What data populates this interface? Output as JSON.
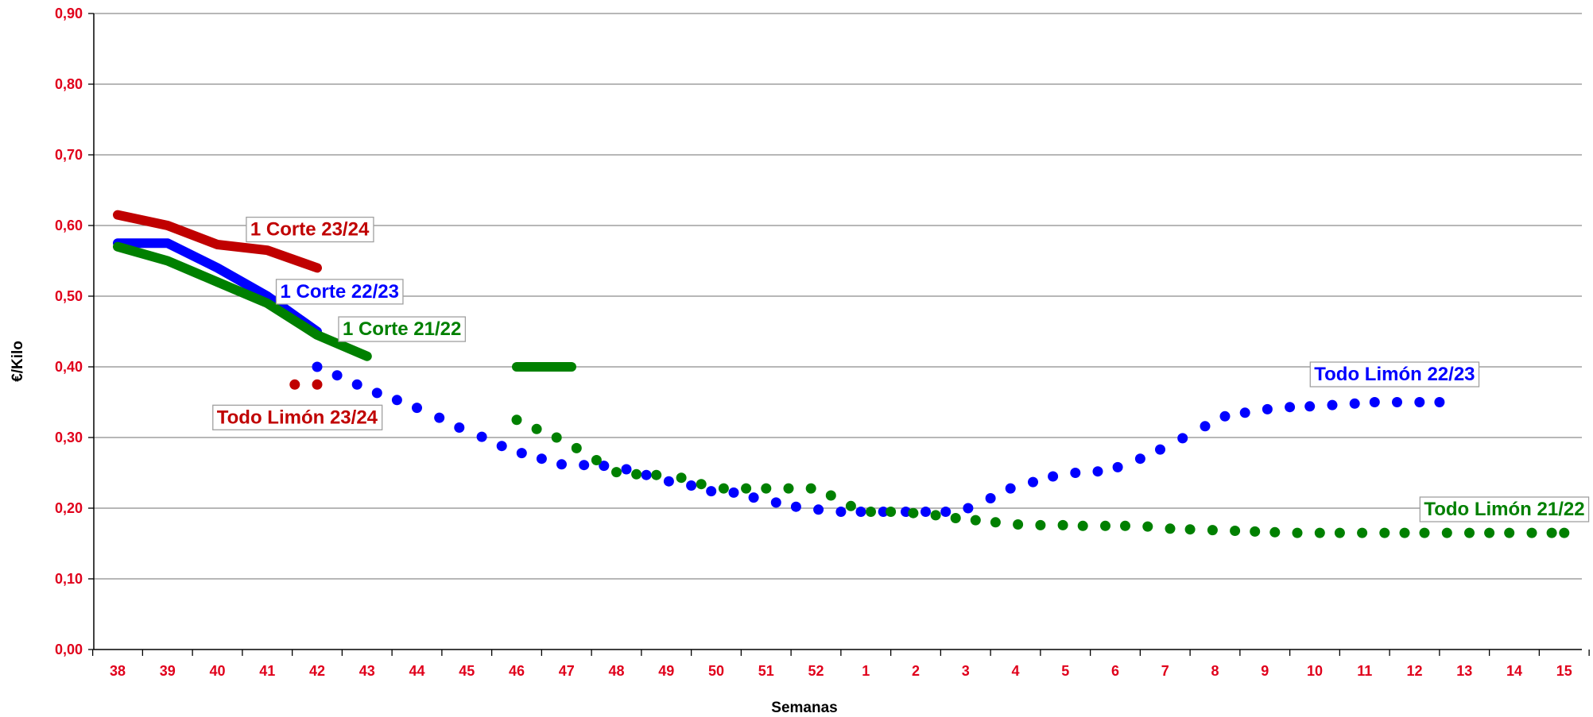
{
  "chart_data": {
    "type": "line",
    "title": "",
    "xlabel": "Semanas",
    "ylabel": "€/Kilo",
    "ylim": [
      0,
      0.9
    ],
    "yticks": [
      "0,00",
      "0,10",
      "0,20",
      "0,30",
      "0,40",
      "0,50",
      "0,60",
      "0,70",
      "0,80",
      "0,90"
    ],
    "categories": [
      "38",
      "39",
      "40",
      "41",
      "42",
      "43",
      "44",
      "45",
      "46",
      "47",
      "48",
      "49",
      "50",
      "51",
      "52",
      "1",
      "2",
      "3",
      "4",
      "5",
      "6",
      "7",
      "8",
      "9",
      "10",
      "11",
      "12",
      "13",
      "14",
      "15"
    ],
    "grid": true,
    "legend": "inline labels",
    "series": [
      {
        "name": "1 Corte 23/24",
        "style": "solid",
        "color": "#c00000",
        "points": [
          [
            0,
            0.615
          ],
          [
            1,
            0.6
          ],
          [
            2,
            0.573
          ],
          [
            3,
            0.565
          ],
          [
            4,
            0.54
          ]
        ]
      },
      {
        "name": "1 Corte 22/23",
        "style": "solid",
        "color": "#0000ff",
        "points": [
          [
            0,
            0.575
          ],
          [
            1,
            0.575
          ],
          [
            2,
            0.54
          ],
          [
            3,
            0.5
          ],
          [
            4,
            0.45
          ]
        ]
      },
      {
        "name": "1 Corte 21/22",
        "style": "solid",
        "color": "#008000",
        "points": [
          [
            0,
            0.57
          ],
          [
            1,
            0.55
          ],
          [
            2,
            0.52
          ],
          [
            3,
            0.49
          ],
          [
            4,
            0.445
          ],
          [
            5,
            0.415
          ]
        ]
      },
      {
        "name": "",
        "style": "solid",
        "color": "#008000",
        "points": [
          [
            8.0,
            0.4
          ],
          [
            9.1,
            0.4
          ]
        ]
      },
      {
        "name": "Todo Limón 23/24",
        "style": "dotted",
        "color": "#c00000",
        "points": [
          [
            3.55,
            0.375
          ],
          [
            4.0,
            0.375
          ]
        ]
      },
      {
        "name": "Todo Limón 22/23",
        "style": "dotted",
        "color": "#0000ff",
        "points": [
          [
            4.0,
            0.4
          ],
          [
            4.4,
            0.388
          ],
          [
            4.8,
            0.375
          ],
          [
            5.2,
            0.363
          ],
          [
            5.6,
            0.353
          ],
          [
            6.0,
            0.342
          ],
          [
            6.45,
            0.328
          ],
          [
            6.85,
            0.314
          ],
          [
            7.3,
            0.301
          ],
          [
            7.7,
            0.288
          ],
          [
            8.1,
            0.278
          ],
          [
            8.5,
            0.27
          ],
          [
            8.9,
            0.262
          ],
          [
            9.35,
            0.261
          ],
          [
            9.75,
            0.26
          ],
          [
            10.2,
            0.255
          ],
          [
            10.6,
            0.247
          ],
          [
            11.05,
            0.238
          ],
          [
            11.5,
            0.232
          ],
          [
            11.9,
            0.224
          ],
          [
            12.35,
            0.222
          ],
          [
            12.75,
            0.215
          ],
          [
            13.2,
            0.208
          ],
          [
            13.6,
            0.202
          ],
          [
            14.05,
            0.198
          ],
          [
            14.5,
            0.195
          ],
          [
            14.9,
            0.195
          ],
          [
            15.35,
            0.195
          ],
          [
            15.8,
            0.195
          ],
          [
            16.2,
            0.195
          ],
          [
            16.6,
            0.195
          ],
          [
            17.05,
            0.2
          ],
          [
            17.5,
            0.214
          ],
          [
            17.9,
            0.228
          ],
          [
            18.35,
            0.237
          ],
          [
            18.75,
            0.245
          ],
          [
            19.2,
            0.25
          ],
          [
            19.65,
            0.252
          ],
          [
            20.05,
            0.258
          ],
          [
            20.5,
            0.27
          ],
          [
            20.9,
            0.283
          ],
          [
            21.35,
            0.299
          ],
          [
            21.8,
            0.316
          ],
          [
            22.2,
            0.33
          ],
          [
            22.6,
            0.335
          ],
          [
            23.05,
            0.34
          ],
          [
            23.5,
            0.343
          ],
          [
            23.9,
            0.344
          ],
          [
            24.35,
            0.346
          ],
          [
            24.8,
            0.348
          ],
          [
            25.2,
            0.35
          ],
          [
            25.65,
            0.35
          ],
          [
            26.1,
            0.35
          ],
          [
            26.5,
            0.35
          ]
        ]
      },
      {
        "name": "Todo Limón 21/22",
        "style": "dotted",
        "color": "#008000",
        "points": [
          [
            8.0,
            0.325
          ],
          [
            8.4,
            0.312
          ],
          [
            8.8,
            0.3
          ],
          [
            9.2,
            0.285
          ],
          [
            9.6,
            0.268
          ],
          [
            10.0,
            0.251
          ],
          [
            10.4,
            0.248
          ],
          [
            10.8,
            0.247
          ],
          [
            11.3,
            0.243
          ],
          [
            11.7,
            0.234
          ],
          [
            12.15,
            0.228
          ],
          [
            12.6,
            0.228
          ],
          [
            13.0,
            0.228
          ],
          [
            13.45,
            0.228
          ],
          [
            13.9,
            0.228
          ],
          [
            14.3,
            0.218
          ],
          [
            14.7,
            0.203
          ],
          [
            15.1,
            0.195
          ],
          [
            15.5,
            0.195
          ],
          [
            15.95,
            0.193
          ],
          [
            16.4,
            0.19
          ],
          [
            16.8,
            0.186
          ],
          [
            17.2,
            0.183
          ],
          [
            17.6,
            0.18
          ],
          [
            18.05,
            0.177
          ],
          [
            18.5,
            0.176
          ],
          [
            18.95,
            0.176
          ],
          [
            19.35,
            0.175
          ],
          [
            19.8,
            0.175
          ],
          [
            20.2,
            0.175
          ],
          [
            20.65,
            0.174
          ],
          [
            21.1,
            0.171
          ],
          [
            21.5,
            0.17
          ],
          [
            21.95,
            0.169
          ],
          [
            22.4,
            0.168
          ],
          [
            22.8,
            0.167
          ],
          [
            23.2,
            0.166
          ],
          [
            23.65,
            0.165
          ],
          [
            24.1,
            0.165
          ],
          [
            24.5,
            0.165
          ],
          [
            24.95,
            0.165
          ],
          [
            25.4,
            0.165
          ],
          [
            25.8,
            0.165
          ],
          [
            26.2,
            0.165
          ],
          [
            26.65,
            0.165
          ],
          [
            27.1,
            0.165
          ],
          [
            27.5,
            0.165
          ],
          [
            27.9,
            0.165
          ],
          [
            28.35,
            0.165
          ],
          [
            28.75,
            0.165
          ],
          [
            29.0,
            0.165
          ]
        ]
      }
    ]
  },
  "labels": [
    {
      "text": "1 Corte 23/24",
      "color": "#c00000",
      "anchor_x": 3.85,
      "anchor_y": 0.593
    },
    {
      "text": "1 Corte 22/23",
      "color": "#0000ff",
      "anchor_x": 4.45,
      "anchor_y": 0.505
    },
    {
      "text": "1 Corte 21/22",
      "color": "#008000",
      "anchor_x": 5.7,
      "anchor_y": 0.452
    },
    {
      "text": "Todo Limón 23/24",
      "color": "#c00000",
      "anchor_x": 3.6,
      "anchor_y": 0.327
    },
    {
      "text": "Todo Limón 22/23",
      "color": "#0000ff",
      "anchor_x": 25.6,
      "anchor_y": 0.388
    },
    {
      "text": "Todo Limón 21/22",
      "color": "#008000",
      "anchor_x": 27.8,
      "anchor_y": 0.197
    }
  ]
}
